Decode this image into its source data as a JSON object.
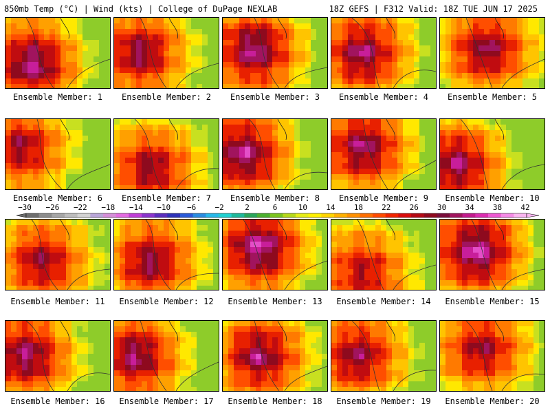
{
  "header": {
    "left_title": "850mb Temp (°C) | Wind (kts) | College of DuPage NEXLAB",
    "right_title": "18Z GEFS | F312 Valid: 18Z TUE JUN 17 2025"
  },
  "colorbar": {
    "tick_labels": [
      "−30",
      "−26",
      "−22",
      "−18",
      "−14",
      "−10",
      "−6",
      "−2",
      "2",
      "6",
      "10",
      "14",
      "18",
      "22",
      "26",
      "30",
      "34",
      "38",
      "42"
    ],
    "colors": [
      "#6e6e6e",
      "#8c8c8c",
      "#a6a6a6",
      "#bdbdbd",
      "#d3d3d3",
      "#b9a6d8",
      "#d58ed8",
      "#e36be0",
      "#c03dd6",
      "#8a33cc",
      "#5a2dbd",
      "#2d32b8",
      "#2a5ad8",
      "#2a8ce0",
      "#27b8e8",
      "#20d0d0",
      "#1fb89a",
      "#2aa65a",
      "#4cb02e",
      "#7cc41e",
      "#b6d81a",
      "#e6ec16",
      "#fff000",
      "#ffd400",
      "#ffb000",
      "#ff9000",
      "#ff6e00",
      "#ff4a00",
      "#f02400",
      "#d80c0c",
      "#b40a14",
      "#8e0a1e",
      "#7a0d3a",
      "#a1145e",
      "#c21a8c",
      "#db2cb0",
      "#ee58d2",
      "#f58ae6",
      "#fab6f0"
    ]
  },
  "members": [
    {
      "label": "Ensemble Member: 1"
    },
    {
      "label": "Ensemble Member: 2"
    },
    {
      "label": "Ensemble Member: 3"
    },
    {
      "label": "Ensemble Member: 4"
    },
    {
      "label": "Ensemble Member: 5"
    },
    {
      "label": "Ensemble Member: 6"
    },
    {
      "label": "Ensemble Member: 7"
    },
    {
      "label": "Ensemble Member: 8"
    },
    {
      "label": "Ensemble Member: 9"
    },
    {
      "label": "Ensemble Member: 10"
    },
    {
      "label": "Ensemble Member: 11"
    },
    {
      "label": "Ensemble Member: 12"
    },
    {
      "label": "Ensemble Member: 13"
    },
    {
      "label": "Ensemble Member: 14"
    },
    {
      "label": "Ensemble Member: 15"
    },
    {
      "label": "Ensemble Member: 16"
    },
    {
      "label": "Ensemble Member: 17"
    },
    {
      "label": "Ensemble Member: 18"
    },
    {
      "label": "Ensemble Member: 19"
    },
    {
      "label": "Ensemble Member: 20"
    }
  ]
}
